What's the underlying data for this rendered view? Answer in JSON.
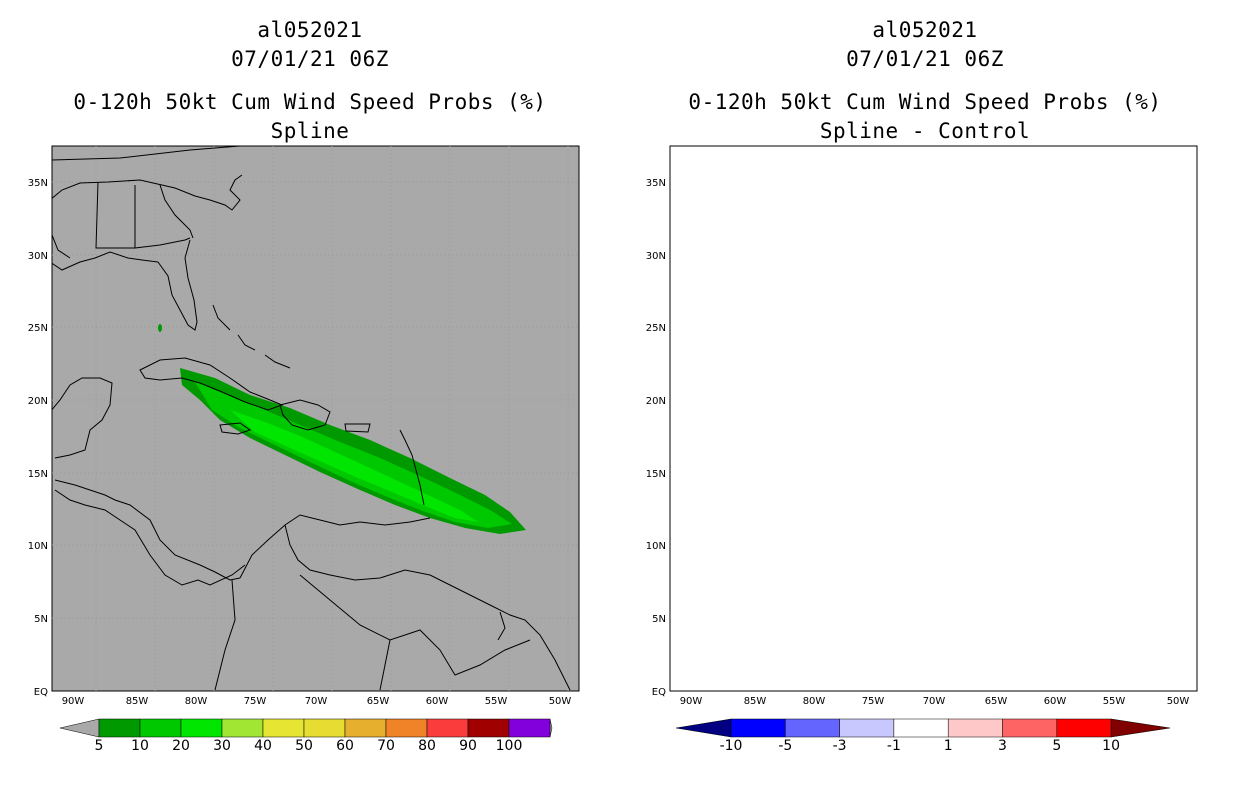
{
  "left_panel": {
    "storm_id": "al052021",
    "datetime": "07/01/21 06Z",
    "product": "0-120h 50kt Cum Wind Speed Probs (%)",
    "subtitle": "Spline",
    "background_color": "#a9a9a9",
    "colorbar": {
      "labels": [
        "5",
        "10",
        "20",
        "30",
        "40",
        "50",
        "60",
        "70",
        "80",
        "90",
        "100"
      ],
      "colors": [
        "#009a00",
        "#00c800",
        "#00e600",
        "#a0e632",
        "#e6e632",
        "#e6dc32",
        "#e6af2d",
        "#f08228",
        "#fa3c3c",
        "#a00000",
        "#8200dc"
      ]
    }
  },
  "right_panel": {
    "storm_id": "al052021",
    "datetime": "07/01/21 06Z",
    "product": "0-120h 50kt Cum Wind Speed Probs (%)",
    "subtitle": "Spline - Control",
    "background_color": "#ffffff",
    "colorbar": {
      "labels": [
        "-10",
        "-5",
        "-3",
        "-1",
        "1",
        "3",
        "5",
        "10"
      ],
      "colors": [
        "#000080",
        "#0000ff",
        "#6464ff",
        "#c8c8ff",
        "#ffffff",
        "#ffc8c8",
        "#ff6464",
        "#ff0000",
        "#800000"
      ]
    }
  },
  "axes": {
    "lon_labels": [
      "90W",
      "85W",
      "80W",
      "75W",
      "70W",
      "65W",
      "60W",
      "55W",
      "50W"
    ],
    "lat_labels": [
      "EQ",
      "5N",
      "10N",
      "15N",
      "20N",
      "25N",
      "30N",
      "35N"
    ]
  }
}
